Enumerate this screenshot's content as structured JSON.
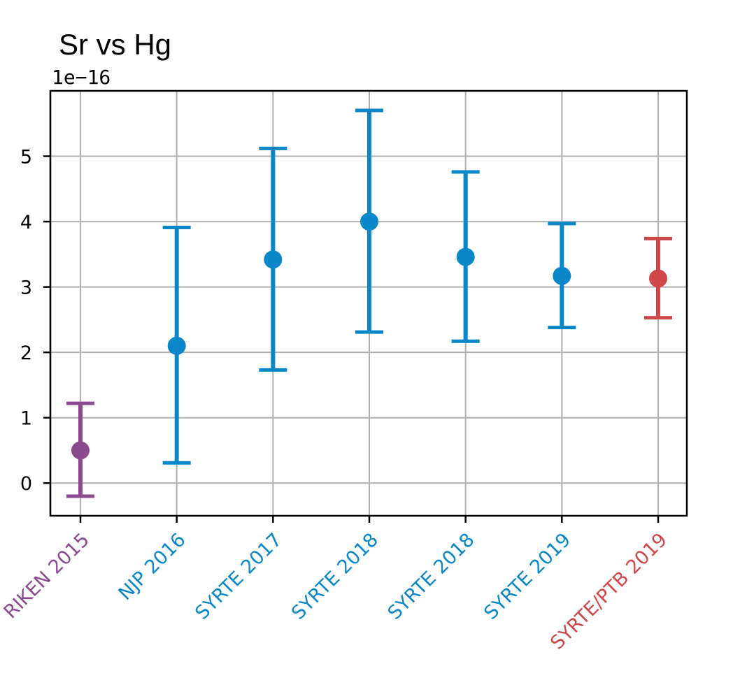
{
  "chart_data": {
    "type": "scatter",
    "title": "Sr vs Hg",
    "y_offset_label": "1e−16",
    "xlabel": "",
    "ylabel": "",
    "categories": [
      "RIKEN 2015",
      "NJP 2016",
      "SYRTE 2017",
      "SYRTE 2018",
      "SYRTE 2018",
      "SYRTE 2019",
      "SYRTE/PTB 2019"
    ],
    "category_colors": [
      "#8b4a8f",
      "#0a87c8",
      "#0a87c8",
      "#0a87c8",
      "#0a87c8",
      "#0a87c8",
      "#d0474a"
    ],
    "values": [
      0.5,
      2.1,
      3.42,
      4.0,
      3.46,
      3.17,
      3.13
    ],
    "error_low": [
      -0.2,
      0.31,
      1.73,
      2.31,
      2.17,
      2.38,
      2.53
    ],
    "error_high": [
      1.22,
      3.91,
      5.12,
      5.7,
      4.76,
      3.97,
      3.74
    ],
    "ylim": [
      -0.5,
      6.0
    ],
    "yticks": [
      0,
      1,
      2,
      3,
      4,
      5
    ],
    "grid": true,
    "error_bars": true
  }
}
